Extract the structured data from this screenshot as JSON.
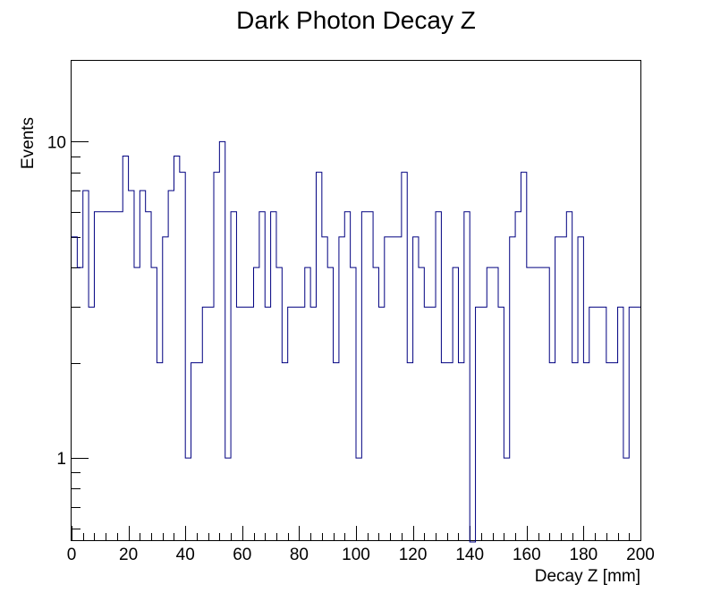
{
  "chart_data": {
    "type": "histogram",
    "title": "Dark Photon Decay Z",
    "xlabel": "Decay Z [mm]",
    "ylabel": "Events",
    "x_range": [
      0,
      200
    ],
    "ylim": [
      0.55,
      18
    ],
    "y_scale": "log",
    "bin_width": 2,
    "x_ticks": [
      0,
      20,
      40,
      60,
      80,
      100,
      120,
      140,
      160,
      180,
      200
    ],
    "y_tick_labels": [
      {
        "value": 1,
        "label": "1"
      },
      {
        "value": 10,
        "label": "10"
      }
    ],
    "line_color": "#000080",
    "values": [
      5,
      4,
      7,
      3,
      6,
      6,
      6,
      6,
      6,
      9,
      7,
      4,
      7,
      6,
      4,
      2,
      5,
      7,
      9,
      8,
      1,
      2,
      2,
      3,
      3,
      8,
      10,
      1,
      6,
      3,
      3,
      3,
      4,
      6,
      3,
      6,
      4,
      2,
      3,
      3,
      3,
      4,
      3,
      8,
      5,
      4,
      2,
      5,
      6,
      4,
      1,
      6,
      6,
      4,
      3,
      5,
      5,
      5,
      8,
      2,
      5,
      4,
      3,
      3,
      6,
      2,
      2,
      4,
      2,
      6,
      0,
      3,
      3,
      4,
      4,
      3,
      1,
      5,
      6,
      8,
      4,
      4,
      4,
      4,
      2,
      5,
      5,
      6,
      2,
      5,
      2,
      3,
      3,
      3,
      2,
      2,
      3,
      1,
      3,
      3
    ]
  }
}
